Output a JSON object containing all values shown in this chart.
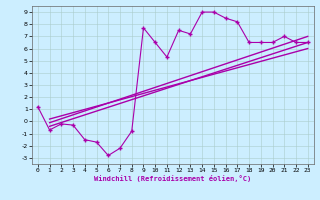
{
  "xlabel": "Windchill (Refroidissement éolien,°C)",
  "bg_color": "#cceeff",
  "line_color": "#aa00aa",
  "xlim": [
    -0.5,
    23.5
  ],
  "ylim": [
    -3.5,
    9.5
  ],
  "xticks": [
    0,
    1,
    2,
    3,
    4,
    5,
    6,
    7,
    8,
    9,
    10,
    11,
    12,
    13,
    14,
    15,
    16,
    17,
    18,
    19,
    20,
    21,
    22,
    23
  ],
  "yticks": [
    -3,
    -2,
    -1,
    0,
    1,
    2,
    3,
    4,
    5,
    6,
    7,
    8,
    9
  ],
  "zigzag_x": [
    0,
    1,
    2,
    3,
    4,
    5,
    6,
    7,
    8,
    9,
    10,
    11,
    12,
    13,
    14,
    15,
    16,
    17,
    18,
    19,
    20,
    21,
    22,
    23
  ],
  "zigzag_y": [
    1.2,
    -0.7,
    -0.2,
    -0.3,
    -1.5,
    -1.7,
    -2.8,
    -2.2,
    -0.8,
    7.7,
    6.5,
    5.3,
    7.5,
    7.2,
    9.0,
    9.0,
    8.5,
    8.2,
    6.5,
    6.5,
    6.5,
    7.0,
    6.5,
    6.5
  ],
  "line1_x": [
    1,
    23
  ],
  "line1_y": [
    -0.1,
    7.0
  ],
  "line2_x": [
    1,
    23
  ],
  "line2_y": [
    -0.4,
    6.5
  ],
  "line3_x": [
    1,
    23
  ],
  "line3_y": [
    0.2,
    6.0
  ]
}
